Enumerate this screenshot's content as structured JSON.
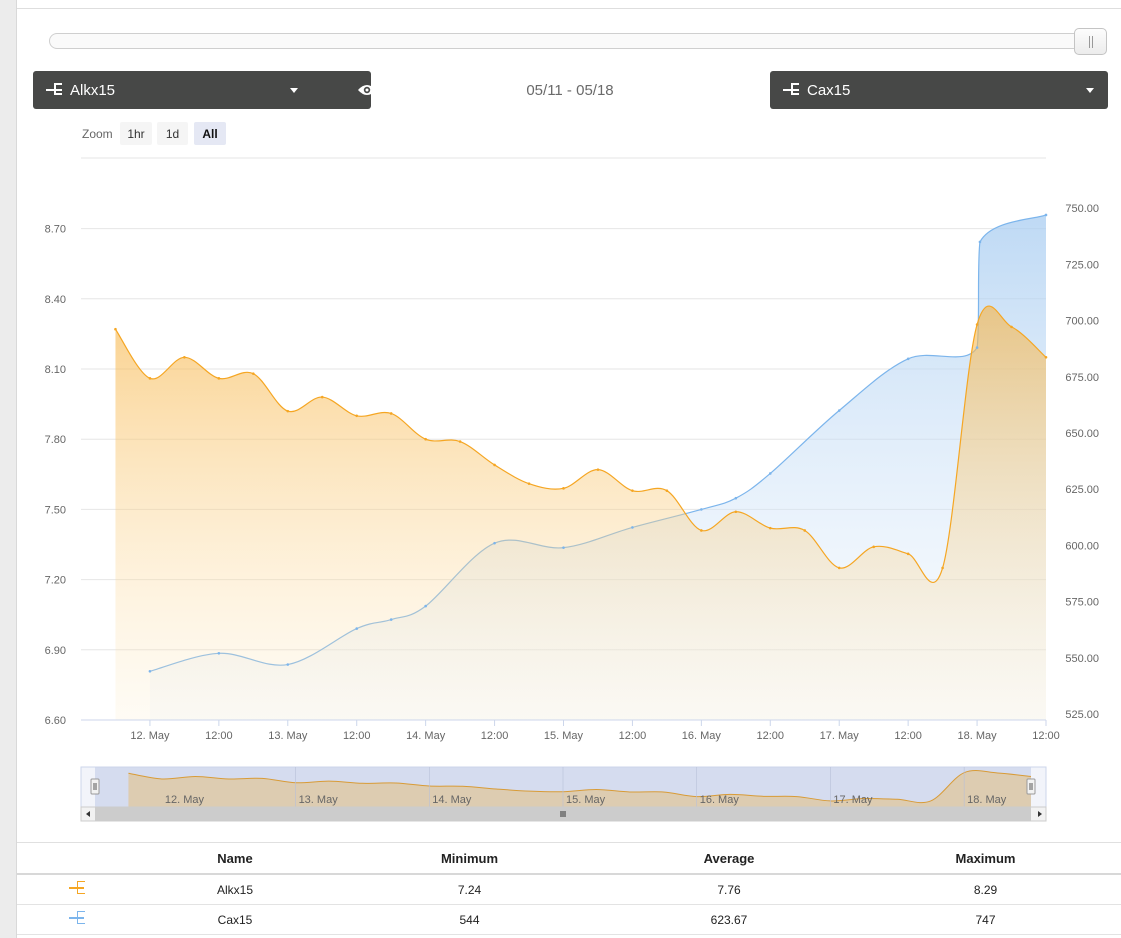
{
  "series_selector_left": {
    "name": "Alkx15",
    "icon": "sensor-icon"
  },
  "series_selector_right": {
    "name": "Cax15",
    "icon": "sensor-icon"
  },
  "visibility_button": {
    "icon": "eye-icon"
  },
  "date_range": "05/11 - 05/18",
  "zoom": {
    "label": "Zoom",
    "buttons": [
      "1hr",
      "1d",
      "All"
    ],
    "active": "All"
  },
  "colors": {
    "alkx": "#f5a623",
    "cax": "#7cb5ec"
  },
  "chart_data": {
    "type": "area",
    "title": "",
    "x_unit": "hours since 11 May 12:00",
    "x_range": [
      0,
      168
    ],
    "x_ticks": [
      {
        "t": 12,
        "label": "12. May"
      },
      {
        "t": 24,
        "label": "12:00"
      },
      {
        "t": 36,
        "label": "13. May"
      },
      {
        "t": 48,
        "label": "12:00"
      },
      {
        "t": 60,
        "label": "14. May"
      },
      {
        "t": 72,
        "label": "12:00"
      },
      {
        "t": 84,
        "label": "15. May"
      },
      {
        "t": 96,
        "label": "12:00"
      },
      {
        "t": 108,
        "label": "16. May"
      },
      {
        "t": 120,
        "label": "12:00"
      },
      {
        "t": 132,
        "label": "17. May"
      },
      {
        "t": 144,
        "label": "12:00"
      },
      {
        "t": 156,
        "label": "18. May"
      },
      {
        "t": 168,
        "label": "12:00"
      }
    ],
    "y_left": {
      "range": [
        6.6,
        8.9
      ],
      "ticks": [
        "6.60",
        "6.90",
        "7.20",
        "7.50",
        "7.80",
        "8.10",
        "8.40",
        "8.70"
      ]
    },
    "y_right": {
      "range": [
        525,
        750
      ],
      "ticks": [
        "525.00",
        "550.00",
        "575.00",
        "600.00",
        "625.00",
        "650.00",
        "675.00",
        "700.00",
        "725.00",
        "750.00"
      ]
    },
    "series": [
      {
        "name": "Alkx15",
        "axis": "left",
        "points": [
          [
            6,
            8.27
          ],
          [
            12,
            8.06
          ],
          [
            18,
            8.15
          ],
          [
            24,
            8.06
          ],
          [
            30,
            8.08
          ],
          [
            36,
            7.92
          ],
          [
            42,
            7.98
          ],
          [
            48,
            7.9
          ],
          [
            54,
            7.91
          ],
          [
            60,
            7.8
          ],
          [
            66,
            7.79
          ],
          [
            72,
            7.69
          ],
          [
            78,
            7.61
          ],
          [
            84,
            7.59
          ],
          [
            90,
            7.67
          ],
          [
            96,
            7.58
          ],
          [
            102,
            7.58
          ],
          [
            108,
            7.41
          ],
          [
            114,
            7.49
          ],
          [
            120,
            7.42
          ],
          [
            126,
            7.41
          ],
          [
            132,
            7.25
          ],
          [
            138,
            7.34
          ],
          [
            144,
            7.31
          ],
          [
            150,
            7.25
          ],
          [
            156,
            8.29
          ],
          [
            162,
            8.28
          ],
          [
            168,
            8.15
          ]
        ]
      },
      {
        "name": "Cax15",
        "axis": "right",
        "points": [
          [
            12,
            544
          ],
          [
            24,
            552
          ],
          [
            36,
            547
          ],
          [
            48,
            563
          ],
          [
            54,
            567
          ],
          [
            60,
            573
          ],
          [
            72,
            601
          ],
          [
            84,
            599
          ],
          [
            96,
            608
          ],
          [
            108,
            616
          ],
          [
            114,
            621
          ],
          [
            120,
            632
          ],
          [
            132,
            660
          ],
          [
            144,
            683
          ],
          [
            156,
            688
          ],
          [
            156.5,
            735
          ],
          [
            168,
            747
          ]
        ]
      }
    ],
    "navigator_labels": [
      "12. May",
      "13. May",
      "14. May",
      "15. May",
      "16. May",
      "17. May",
      "18. May"
    ]
  },
  "summary": {
    "headers": [
      "Name",
      "Minimum",
      "Average",
      "Maximum"
    ],
    "rows": [
      {
        "name": "Alkx15",
        "minimum": "7.24",
        "average": "7.76",
        "maximum": "8.29"
      },
      {
        "name": "Cax15",
        "minimum": "544",
        "average": "623.67",
        "maximum": "747"
      }
    ]
  }
}
